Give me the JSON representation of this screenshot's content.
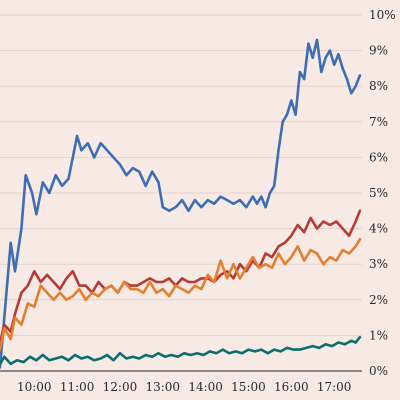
{
  "chart_data": {
    "type": "line",
    "title": "",
    "xlabel": "",
    "ylabel": "",
    "x_unit": "time of day (hours)",
    "xlim": [
      9.2,
      17.65
    ],
    "ylim": [
      0,
      10
    ],
    "x_ticks": [
      {
        "label": "10:00",
        "value": 10
      },
      {
        "label": "11:00",
        "value": 11
      },
      {
        "label": "12:00",
        "value": 12
      },
      {
        "label": "13:00",
        "value": 13
      },
      {
        "label": "14:00",
        "value": 14
      },
      {
        "label": "15:00",
        "value": 15
      },
      {
        "label": "16:00",
        "value": 16
      },
      {
        "label": "17:00",
        "value": 17
      }
    ],
    "y_ticks": [
      {
        "label": "0%",
        "value": 0
      },
      {
        "label": "1%",
        "value": 1
      },
      {
        "label": "2%",
        "value": 2
      },
      {
        "label": "3%",
        "value": 3
      },
      {
        "label": "4%",
        "value": 4
      },
      {
        "label": "5%",
        "value": 5
      },
      {
        "label": "6%",
        "value": 6
      },
      {
        "label": "7%",
        "value": 7
      },
      {
        "label": "8%",
        "value": 8
      },
      {
        "label": "9%",
        "value": 9
      },
      {
        "label": "10%",
        "value": 10
      }
    ],
    "y_axis_position": "right",
    "grid": "horizontal",
    "series": [
      {
        "color": "#3d6eb5",
        "x": [
          9.2,
          9.3,
          9.45,
          9.55,
          9.7,
          9.8,
          9.95,
          10.05,
          10.2,
          10.35,
          10.5,
          10.65,
          10.8,
          10.9,
          11.0,
          11.1,
          11.25,
          11.4,
          11.55,
          11.7,
          11.85,
          12.0,
          12.15,
          12.3,
          12.45,
          12.6,
          12.75,
          12.9,
          13.0,
          13.15,
          13.3,
          13.45,
          13.6,
          13.75,
          13.9,
          14.05,
          14.2,
          14.35,
          14.5,
          14.65,
          14.8,
          14.95,
          15.1,
          15.2,
          15.3,
          15.4,
          15.5,
          15.6,
          15.7,
          15.8,
          15.9,
          16.0,
          16.1,
          16.2,
          16.3,
          16.4,
          16.5,
          16.6,
          16.7,
          16.8,
          16.9,
          17.0,
          17.1,
          17.2,
          17.3,
          17.4,
          17.5,
          17.6
        ],
        "values": [
          0.1,
          1.5,
          3.6,
          2.8,
          4.0,
          5.5,
          5.0,
          4.4,
          5.3,
          5.0,
          5.5,
          5.2,
          5.4,
          6.0,
          6.6,
          6.2,
          6.4,
          6.0,
          6.4,
          6.2,
          6.0,
          5.8,
          5.5,
          5.7,
          5.6,
          5.2,
          5.6,
          5.3,
          4.6,
          4.5,
          4.6,
          4.8,
          4.5,
          4.8,
          4.6,
          4.8,
          4.7,
          4.9,
          4.8,
          4.7,
          4.8,
          4.6,
          4.9,
          4.7,
          4.9,
          4.6,
          5.0,
          5.2,
          6.2,
          7.0,
          7.2,
          7.6,
          7.2,
          8.4,
          8.2,
          9.2,
          8.8,
          9.3,
          8.4,
          8.8,
          9.0,
          8.6,
          8.9,
          8.5,
          8.2,
          7.8,
          8.0,
          8.3
        ]
      },
      {
        "color": "#b73b34",
        "x": [
          9.2,
          9.3,
          9.45,
          9.55,
          9.7,
          9.85,
          10.0,
          10.15,
          10.3,
          10.45,
          10.6,
          10.75,
          10.9,
          11.05,
          11.2,
          11.35,
          11.5,
          11.65,
          11.8,
          11.95,
          12.1,
          12.25,
          12.4,
          12.55,
          12.7,
          12.85,
          13.0,
          13.15,
          13.3,
          13.45,
          13.6,
          13.75,
          13.9,
          14.05,
          14.2,
          14.35,
          14.5,
          14.65,
          14.8,
          14.95,
          15.1,
          15.25,
          15.4,
          15.55,
          15.7,
          15.85,
          16.0,
          16.15,
          16.3,
          16.45,
          16.6,
          16.75,
          16.9,
          17.05,
          17.2,
          17.35,
          17.5,
          17.6
        ],
        "values": [
          0.8,
          1.3,
          1.1,
          1.6,
          2.2,
          2.4,
          2.8,
          2.5,
          2.7,
          2.5,
          2.3,
          2.6,
          2.8,
          2.4,
          2.4,
          2.2,
          2.5,
          2.3,
          2.4,
          2.2,
          2.5,
          2.4,
          2.4,
          2.5,
          2.6,
          2.5,
          2.5,
          2.6,
          2.4,
          2.6,
          2.5,
          2.5,
          2.6,
          2.6,
          2.5,
          2.7,
          2.8,
          2.6,
          3.0,
          2.8,
          3.1,
          2.9,
          3.3,
          3.2,
          3.5,
          3.6,
          3.8,
          4.1,
          3.9,
          4.3,
          4.0,
          4.2,
          4.1,
          4.2,
          4.0,
          3.8,
          4.2,
          4.5
        ]
      },
      {
        "color": "#e3802f",
        "x": [
          9.2,
          9.3,
          9.45,
          9.55,
          9.7,
          9.85,
          10.0,
          10.15,
          10.3,
          10.45,
          10.6,
          10.75,
          10.9,
          11.05,
          11.2,
          11.35,
          11.5,
          11.65,
          11.8,
          11.95,
          12.1,
          12.25,
          12.4,
          12.55,
          12.7,
          12.85,
          13.0,
          13.15,
          13.3,
          13.45,
          13.6,
          13.75,
          13.9,
          14.05,
          14.2,
          14.35,
          14.5,
          14.65,
          14.8,
          14.95,
          15.1,
          15.25,
          15.4,
          15.55,
          15.7,
          15.85,
          16.0,
          16.15,
          16.3,
          16.45,
          16.6,
          16.75,
          16.9,
          17.05,
          17.2,
          17.35,
          17.5,
          17.6
        ],
        "values": [
          0.6,
          1.2,
          0.9,
          1.5,
          1.3,
          1.9,
          1.8,
          2.4,
          2.2,
          2.0,
          2.2,
          2.0,
          2.1,
          2.3,
          2.0,
          2.2,
          2.1,
          2.3,
          2.4,
          2.2,
          2.5,
          2.3,
          2.3,
          2.2,
          2.5,
          2.2,
          2.3,
          2.1,
          2.4,
          2.3,
          2.2,
          2.4,
          2.3,
          2.7,
          2.5,
          3.1,
          2.6,
          3.0,
          2.6,
          2.9,
          3.2,
          2.9,
          3.0,
          2.9,
          3.3,
          3.0,
          3.2,
          3.5,
          3.1,
          3.4,
          3.3,
          3.0,
          3.2,
          3.1,
          3.4,
          3.3,
          3.5,
          3.7
        ]
      },
      {
        "color": "#0d6e6e",
        "x": [
          9.2,
          9.3,
          9.45,
          9.6,
          9.75,
          9.9,
          10.05,
          10.2,
          10.35,
          10.5,
          10.65,
          10.8,
          10.95,
          11.1,
          11.25,
          11.4,
          11.55,
          11.7,
          11.85,
          12.0,
          12.15,
          12.3,
          12.45,
          12.6,
          12.75,
          12.9,
          13.05,
          13.2,
          13.35,
          13.5,
          13.65,
          13.8,
          13.95,
          14.1,
          14.25,
          14.4,
          14.55,
          14.7,
          14.85,
          15.0,
          15.15,
          15.3,
          15.45,
          15.6,
          15.75,
          15.9,
          16.05,
          16.2,
          16.35,
          16.5,
          16.65,
          16.8,
          16.95,
          17.1,
          17.25,
          17.4,
          17.5,
          17.6
        ],
        "values": [
          0.2,
          0.4,
          0.2,
          0.3,
          0.25,
          0.4,
          0.3,
          0.45,
          0.3,
          0.35,
          0.4,
          0.3,
          0.45,
          0.35,
          0.4,
          0.3,
          0.35,
          0.45,
          0.3,
          0.5,
          0.35,
          0.4,
          0.35,
          0.45,
          0.4,
          0.5,
          0.4,
          0.45,
          0.4,
          0.5,
          0.45,
          0.5,
          0.45,
          0.55,
          0.5,
          0.6,
          0.5,
          0.55,
          0.5,
          0.6,
          0.55,
          0.6,
          0.5,
          0.6,
          0.55,
          0.65,
          0.6,
          0.6,
          0.65,
          0.7,
          0.65,
          0.75,
          0.7,
          0.8,
          0.75,
          0.85,
          0.8,
          0.95
        ]
      }
    ]
  }
}
